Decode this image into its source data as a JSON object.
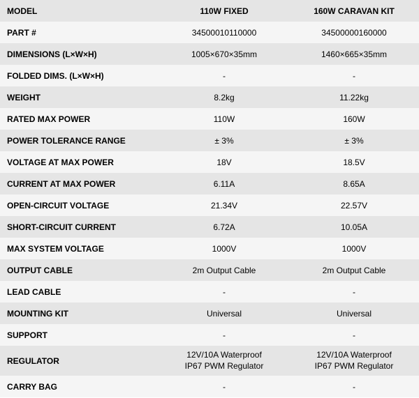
{
  "table": {
    "background_odd": "#e5e5e5",
    "background_even": "#f5f5f5",
    "text_color": "#000000",
    "label_fontsize": 12,
    "value_fontsize": 12,
    "rows": [
      {
        "label": "MODEL",
        "col1": "110W FIXED",
        "col2": "160W CARAVAN KIT",
        "header": true
      },
      {
        "label": "PART #",
        "col1": "34500010110000",
        "col2": "34500000160000"
      },
      {
        "label": "DIMENSIONS (L×W×H)",
        "col1": "1005×670×35mm",
        "col2": "1460×665×35mm"
      },
      {
        "label": "FOLDED DIMS. (L×W×H)",
        "col1": "-",
        "col2": "-"
      },
      {
        "label": "WEIGHT",
        "col1": "8.2kg",
        "col2": "11.22kg"
      },
      {
        "label": "RATED MAX POWER",
        "col1": "110W",
        "col2": "160W"
      },
      {
        "label": "POWER TOLERANCE RANGE",
        "col1": "± 3%",
        "col2": "± 3%"
      },
      {
        "label": "VOLTAGE AT MAX POWER",
        "col1": "18V",
        "col2": "18.5V"
      },
      {
        "label": "CURRENT AT MAX POWER",
        "col1": "6.11A",
        "col2": "8.65A"
      },
      {
        "label": "OPEN-CIRCUIT VOLTAGE",
        "col1": "21.34V",
        "col2": "22.57V"
      },
      {
        "label": "SHORT-CIRCUIT CURRENT",
        "col1": "6.72A",
        "col2": "10.05A"
      },
      {
        "label": "MAX SYSTEM VOLTAGE",
        "col1": "1000V",
        "col2": "1000V"
      },
      {
        "label": "OUTPUT CABLE",
        "col1": "2m Output Cable",
        "col2": "2m Output Cable"
      },
      {
        "label": "LEAD CABLE",
        "col1": "-",
        "col2": "-"
      },
      {
        "label": "MOUNTING KIT",
        "col1": "Universal",
        "col2": "Universal"
      },
      {
        "label": "SUPPORT",
        "col1": "-",
        "col2": "-"
      },
      {
        "label": "REGULATOR",
        "col1": "12V/10A Waterproof\nIP67 PWM Regulator",
        "col2": "12V/10A Waterproof\nIP67 PWM Regulator",
        "tall": true
      },
      {
        "label": "CARRY BAG",
        "col1": "-",
        "col2": "-"
      }
    ]
  }
}
